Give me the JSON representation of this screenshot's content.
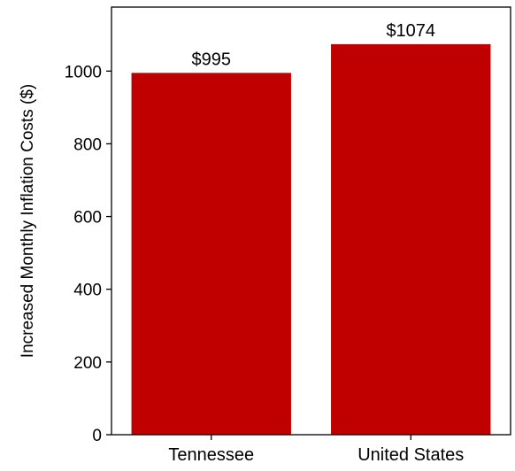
{
  "chart_data": {
    "type": "bar",
    "categories": [
      "Tennessee",
      "United States"
    ],
    "values": [
      995,
      1074
    ],
    "data_labels": [
      "$995",
      "$1074"
    ],
    "title": "",
    "xlabel": "",
    "ylabel": "Increased Monthly Inflation Costs ($)",
    "ylim": [
      0,
      1176
    ],
    "yticks": [
      0,
      200,
      400,
      600,
      800,
      1000
    ],
    "ytick_labels": [
      "0",
      "200",
      "400",
      "600",
      "800",
      "1000"
    ],
    "grid": false,
    "legend": "none",
    "colors": {
      "bar": "#c00000",
      "axis": "#000000",
      "background": "#ffffff"
    }
  }
}
